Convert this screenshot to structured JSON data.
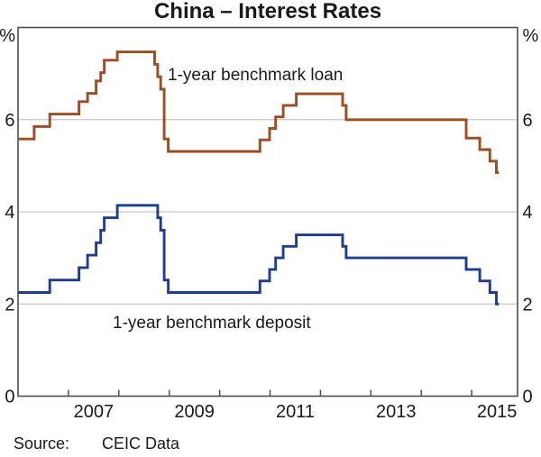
{
  "chart_data": {
    "type": "line",
    "subtype": "step",
    "title": "China – Interest Rates",
    "unit": "%",
    "x_domain": [
      2006.0,
      2015.91
    ],
    "y_domain": [
      0,
      8
    ],
    "y_gridlines": [
      2,
      4,
      6
    ],
    "y_tick_labels": [
      0,
      2,
      4,
      6
    ],
    "x_ticks": [
      2007,
      2008,
      2009,
      2010,
      2011,
      2012,
      2013,
      2014,
      2015
    ],
    "x_tick_labels": [
      2007,
      2009,
      2011,
      2013,
      2015
    ],
    "grid": "horizontal-only",
    "legend_position": "inline-labels",
    "axis_color": "#4d4d4d",
    "grid_color": "#c9c9c9",
    "series": [
      {
        "name": "1-year benchmark loan",
        "color": "#9e4c20",
        "x_end": 2015.54,
        "points": [
          [
            2006.0,
            5.58
          ],
          [
            2006.32,
            5.85
          ],
          [
            2006.63,
            6.12
          ],
          [
            2007.21,
            6.39
          ],
          [
            2007.38,
            6.57
          ],
          [
            2007.55,
            6.84
          ],
          [
            2007.64,
            7.02
          ],
          [
            2007.71,
            7.29
          ],
          [
            2007.97,
            7.47
          ],
          [
            2008.71,
            7.2
          ],
          [
            2008.77,
            6.93
          ],
          [
            2008.83,
            6.66
          ],
          [
            2008.9,
            5.58
          ],
          [
            2008.98,
            5.31
          ],
          [
            2010.8,
            5.56
          ],
          [
            2010.99,
            5.81
          ],
          [
            2011.11,
            6.06
          ],
          [
            2011.26,
            6.31
          ],
          [
            2011.52,
            6.56
          ],
          [
            2012.44,
            6.31
          ],
          [
            2012.51,
            6.0
          ],
          [
            2014.89,
            5.6
          ],
          [
            2015.16,
            5.35
          ],
          [
            2015.36,
            5.1
          ],
          [
            2015.49,
            4.85
          ]
        ]
      },
      {
        "name": "1-year benchmark deposit",
        "color": "#1b3d92",
        "x_end": 2015.54,
        "points": [
          [
            2006.0,
            2.25
          ],
          [
            2006.63,
            2.52
          ],
          [
            2007.21,
            2.79
          ],
          [
            2007.38,
            3.06
          ],
          [
            2007.55,
            3.33
          ],
          [
            2007.64,
            3.6
          ],
          [
            2007.71,
            3.87
          ],
          [
            2007.97,
            4.14
          ],
          [
            2008.77,
            3.87
          ],
          [
            2008.83,
            3.6
          ],
          [
            2008.9,
            2.52
          ],
          [
            2008.98,
            2.25
          ],
          [
            2010.8,
            2.5
          ],
          [
            2010.99,
            2.75
          ],
          [
            2011.11,
            3.0
          ],
          [
            2011.26,
            3.25
          ],
          [
            2011.52,
            3.5
          ],
          [
            2012.44,
            3.25
          ],
          [
            2012.51,
            3.0
          ],
          [
            2014.89,
            2.75
          ],
          [
            2015.16,
            2.5
          ],
          [
            2015.36,
            2.25
          ],
          [
            2015.49,
            2.0
          ]
        ]
      }
    ],
    "source": {
      "label": "Source:",
      "text": "CEIC Data"
    }
  }
}
